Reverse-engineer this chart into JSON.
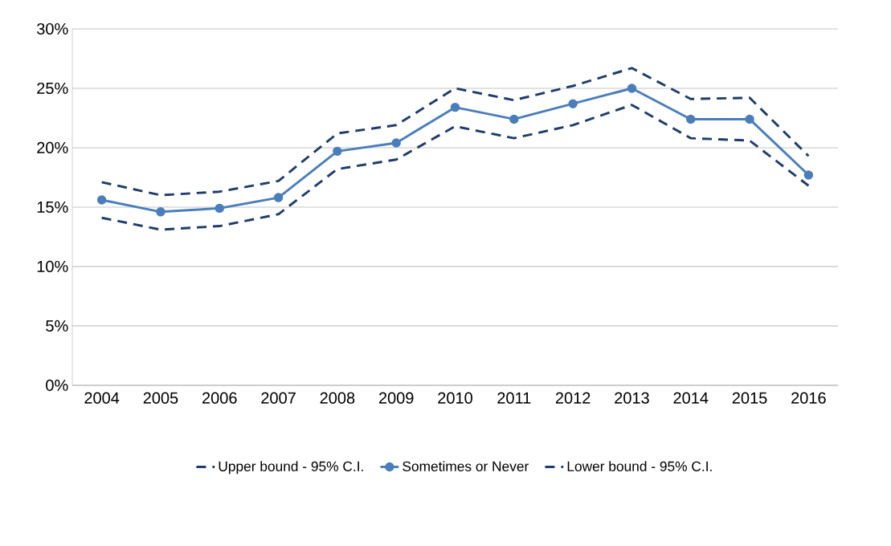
{
  "chart_data": {
    "type": "line",
    "categories": [
      "2004",
      "2005",
      "2006",
      "2007",
      "2008",
      "2009",
      "2010",
      "2011",
      "2012",
      "2013",
      "2014",
      "2015",
      "2016"
    ],
    "series": [
      {
        "name": "Upper bound - 95% C.I.",
        "color": "#1f3d6b",
        "line_style": "dashed",
        "marker": "none",
        "values": [
          17.1,
          16.0,
          16.3,
          17.2,
          21.2,
          21.9,
          25.0,
          24.0,
          25.2,
          26.7,
          24.1,
          24.2,
          19.3
        ]
      },
      {
        "name": "Sometimes or Never",
        "color": "#4a7ebb",
        "line_style": "solid",
        "marker": "circle",
        "values": [
          15.6,
          14.6,
          14.9,
          15.8,
          19.7,
          20.4,
          23.4,
          22.4,
          23.7,
          25.0,
          22.4,
          22.4,
          17.7
        ]
      },
      {
        "name": "Lower bound - 95% C.I.",
        "color": "#1f3d6b",
        "line_style": "dashed",
        "marker": "none",
        "values": [
          14.1,
          13.1,
          13.4,
          14.4,
          18.2,
          19.0,
          21.8,
          20.8,
          21.9,
          23.6,
          20.8,
          20.6,
          16.8
        ]
      }
    ],
    "ylim": [
      0,
      30
    ],
    "yticks": [
      {
        "value": 0,
        "label": "0%"
      },
      {
        "value": 5,
        "label": "5%"
      },
      {
        "value": 10,
        "label": "10%"
      },
      {
        "value": 15,
        "label": "15%"
      },
      {
        "value": 20,
        "label": "20%"
      },
      {
        "value": 25,
        "label": "25%"
      },
      {
        "value": 30,
        "label": "30%"
      }
    ],
    "grid": "y",
    "legend": "bottom"
  }
}
